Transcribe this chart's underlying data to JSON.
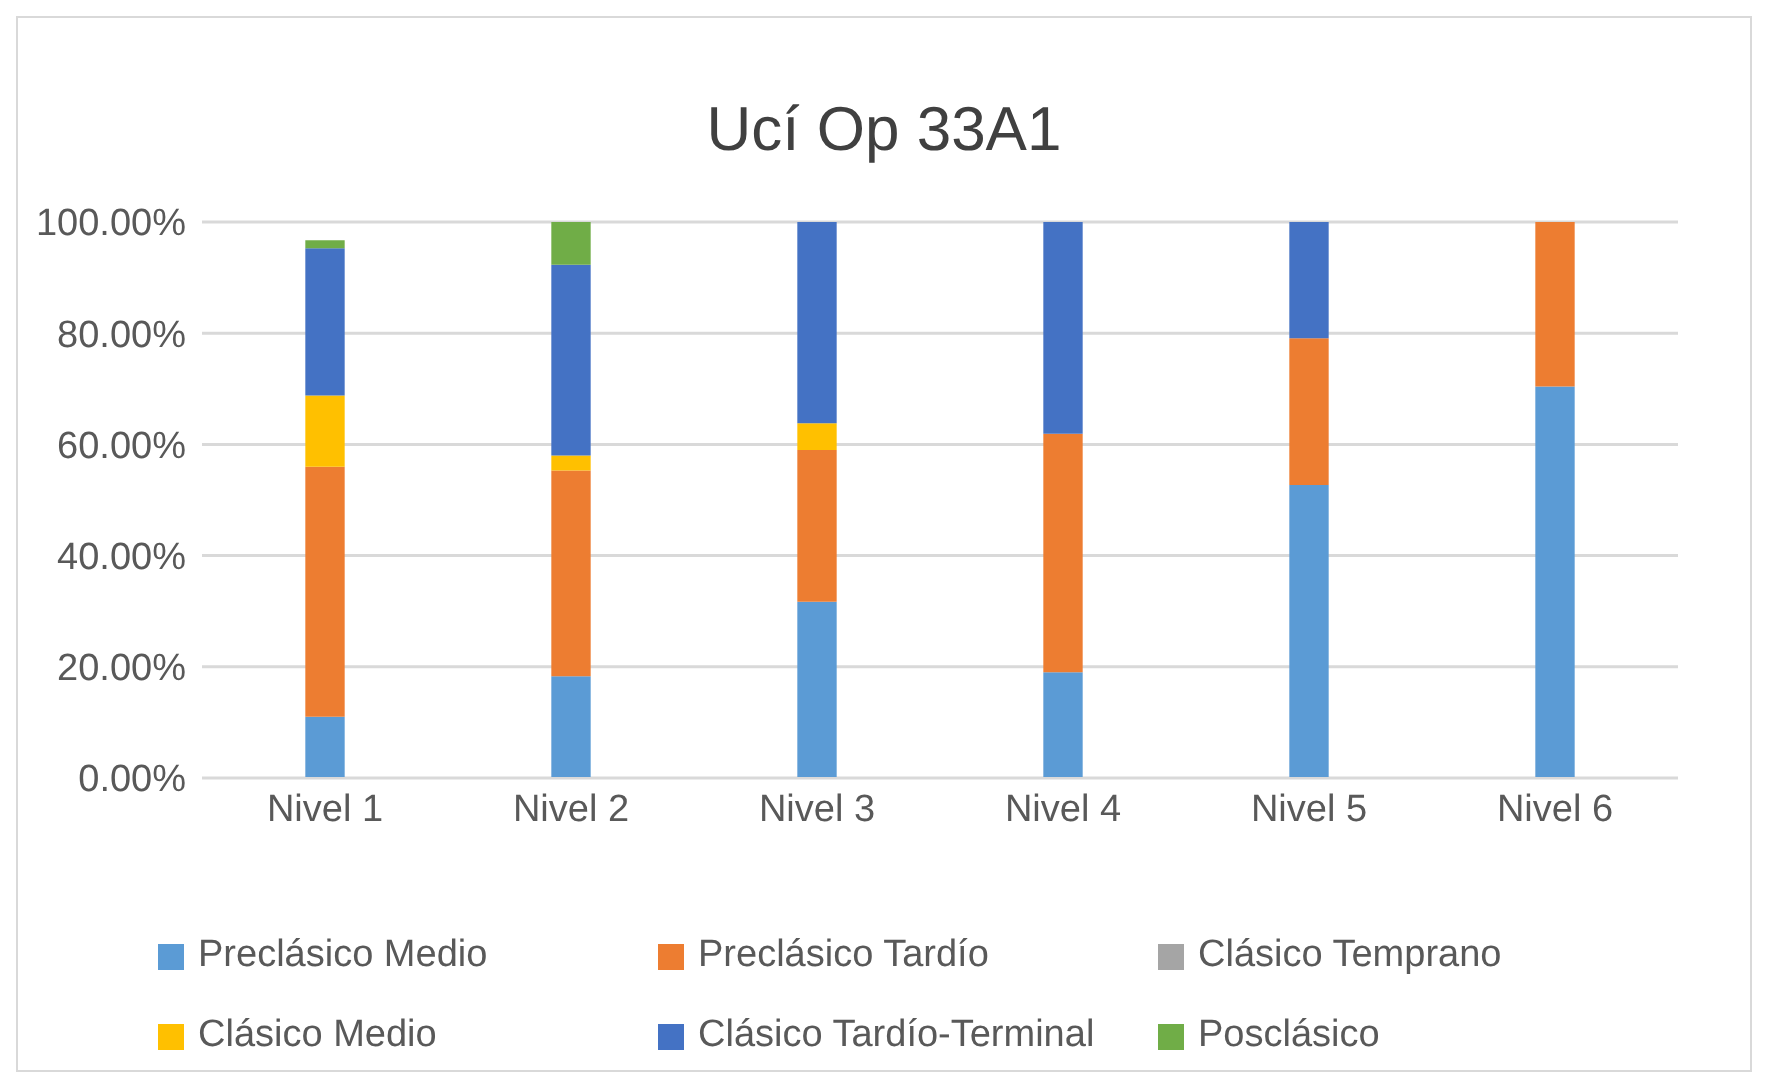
{
  "chart_data": {
    "type": "bar",
    "title": "Ucí Op 33A1",
    "stacked": true,
    "categories": [
      "Nivel 1",
      "Nivel 2",
      "Nivel 3",
      "Nivel 4",
      "Nivel 5",
      "Nivel 6"
    ],
    "series": [
      {
        "name": "Preclásico Medio",
        "color": "#5b9bd5",
        "values": [
          11.0,
          18.3,
          31.7,
          19.0,
          52.7,
          70.4
        ]
      },
      {
        "name": "Preclásico Tardío",
        "color": "#ed7d31",
        "values": [
          45.0,
          37.0,
          27.3,
          42.9,
          26.4,
          29.6
        ]
      },
      {
        "name": "Clásico Temprano",
        "color": "#a5a5a5",
        "values": [
          0,
          0,
          0,
          0,
          0,
          0
        ]
      },
      {
        "name": "Clásico Medio",
        "color": "#ffc000",
        "values": [
          12.8,
          2.7,
          4.8,
          0,
          0,
          0
        ]
      },
      {
        "name": "Clásico Tardío-Terminal",
        "color": "#4472c4",
        "values": [
          26.5,
          34.3,
          36.2,
          38.1,
          20.9,
          0
        ]
      },
      {
        "name": "Posclásico",
        "color": "#70ad47",
        "values": [
          1.4,
          7.7,
          0,
          0,
          0,
          0
        ]
      }
    ],
    "ylim": [
      0,
      100
    ],
    "yticks": [
      {
        "value": 0,
        "label": "0.00%"
      },
      {
        "value": 20,
        "label": "20.00%"
      },
      {
        "value": 40,
        "label": "40.00%"
      },
      {
        "value": 60,
        "label": "60.00%"
      },
      {
        "value": 80,
        "label": "80.00%"
      },
      {
        "value": 100,
        "label": "100.00%"
      }
    ],
    "grid": "y",
    "legend": "bottom"
  }
}
